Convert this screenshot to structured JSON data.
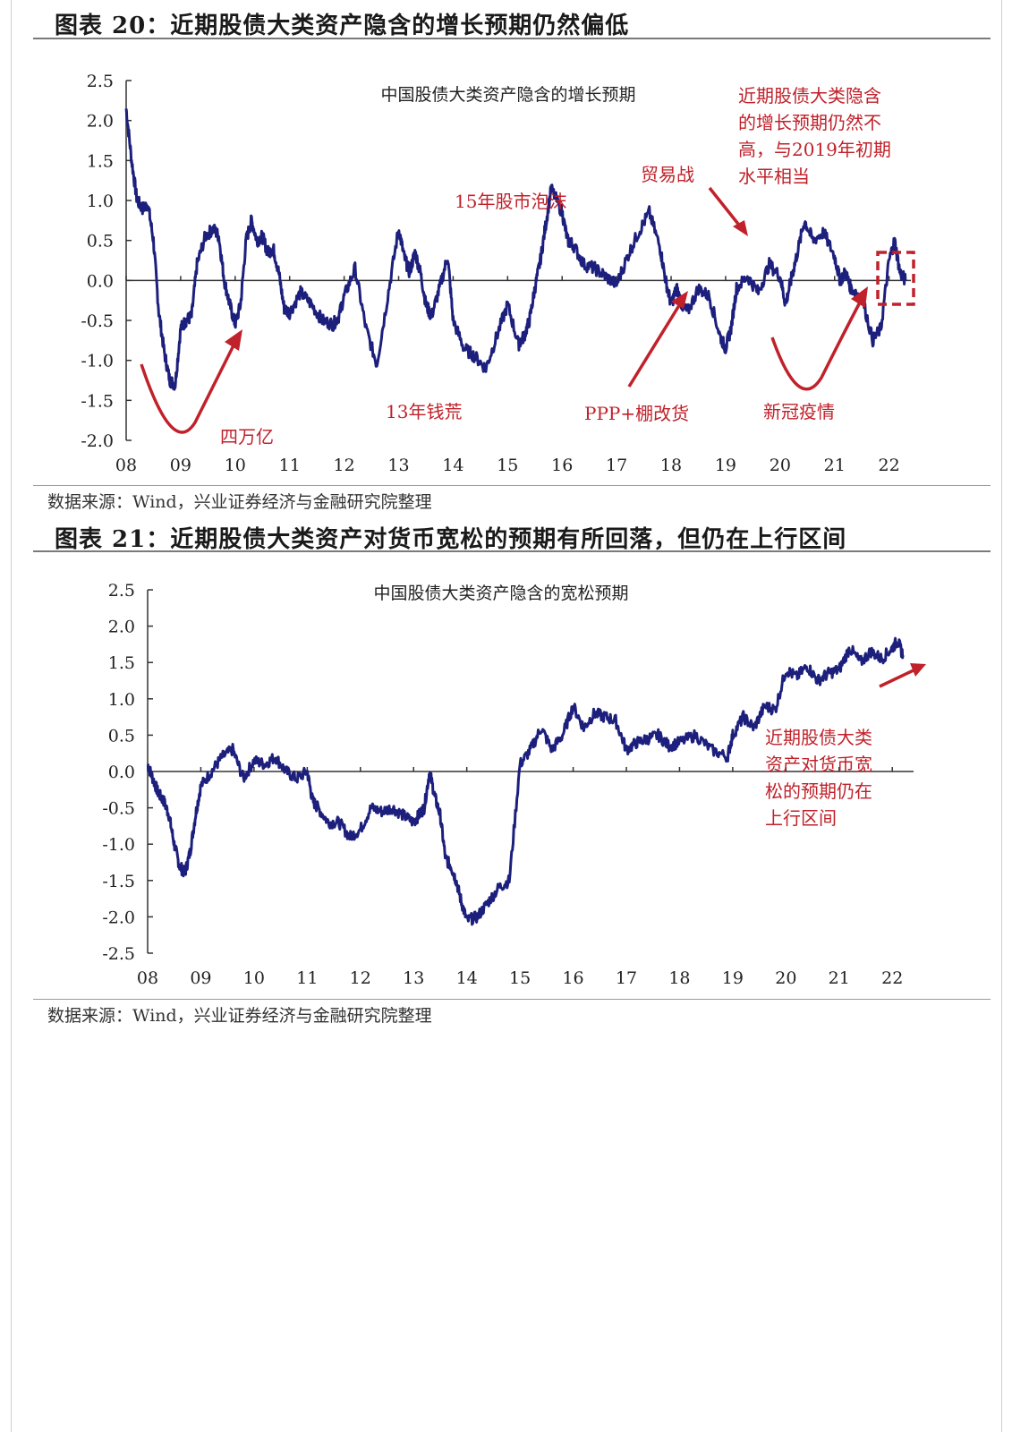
{
  "figures": [
    {
      "heading": "图表 20：近期股债大类资产隐含的增长预期仍然偏低",
      "source": "数据来源：Wind，兴业证券经济与金融研究院整理",
      "chart_data": {
        "type": "line",
        "title": "中国股债大类资产隐含的增长预期",
        "xlabel": "",
        "ylabel": "",
        "ylim": [
          -2.0,
          2.5
        ],
        "ytick_labels": [
          "2.5",
          "2.0",
          "1.5",
          "1.0",
          "0.5",
          "0.0",
          "-0.5",
          "-1.0",
          "-1.5",
          "-2.0"
        ],
        "xtick_labels": [
          "08",
          "09",
          "10",
          "11",
          "12",
          "13",
          "14",
          "15",
          "16",
          "17",
          "18",
          "19",
          "20",
          "21",
          "22"
        ],
        "x_range": [
          2008,
          2022.4
        ],
        "series": [
          {
            "name": "",
            "color": "#1c1f7c",
            "x": [
              2008.0,
              2008.1,
              2008.2,
              2008.3,
              2008.4,
              2008.5,
              2008.6,
              2008.7,
              2008.8,
              2008.9,
              2009.0,
              2009.1,
              2009.2,
              2009.3,
              2009.45,
              2009.6,
              2009.7,
              2009.8,
              2009.9,
              2010.0,
              2010.1,
              2010.2,
              2010.3,
              2010.4,
              2010.5,
              2010.6,
              2010.7,
              2010.8,
              2010.9,
              2011.0,
              2011.2,
              2011.4,
              2011.6,
              2011.8,
              2011.9,
              2012.0,
              2012.2,
              2012.4,
              2012.6,
              2012.8,
              2013.0,
              2013.1,
              2013.2,
              2013.3,
              2013.4,
              2013.5,
              2013.6,
              2013.75,
              2013.9,
              2014.0,
              2014.2,
              2014.4,
              2014.6,
              2014.8,
              2015.0,
              2015.2,
              2015.3,
              2015.4,
              2015.5,
              2015.6,
              2015.7,
              2015.8,
              2016.0,
              2016.1,
              2016.2,
              2016.4,
              2016.6,
              2016.8,
              2017.0,
              2017.2,
              2017.4,
              2017.6,
              2017.8,
              2017.9,
              2018.0,
              2018.1,
              2018.2,
              2018.3,
              2018.5,
              2018.7,
              2018.9,
              2019.0,
              2019.1,
              2019.2,
              2019.4,
              2019.6,
              2019.8,
              2020.0,
              2020.1,
              2020.2,
              2020.3,
              2020.45,
              2020.6,
              2020.8,
              2021.0,
              2021.1,
              2021.2,
              2021.3,
              2021.5,
              2021.7,
              2021.85,
              2022.0,
              2022.1,
              2022.2,
              2022.3
            ],
            "y": [
              2.15,
              1.5,
              1.0,
              0.9,
              0.95,
              0.5,
              -0.4,
              -0.9,
              -1.25,
              -1.3,
              -0.6,
              -0.5,
              -0.45,
              0.2,
              0.55,
              0.65,
              0.55,
              0.0,
              -0.3,
              -0.55,
              -0.3,
              0.5,
              0.75,
              0.5,
              0.55,
              0.35,
              0.4,
              0.1,
              -0.35,
              -0.4,
              -0.15,
              -0.3,
              -0.5,
              -0.55,
              -0.45,
              -0.2,
              0.15,
              -0.6,
              -1.05,
              -0.2,
              0.65,
              0.3,
              0.1,
              0.35,
              0.1,
              -0.3,
              -0.45,
              -0.1,
              0.3,
              -0.5,
              -0.85,
              -0.95,
              -1.1,
              -0.7,
              -0.3,
              -0.8,
              -0.7,
              -0.5,
              -0.1,
              0.25,
              0.7,
              1.15,
              0.85,
              0.5,
              0.45,
              0.2,
              0.15,
              0.05,
              -0.05,
              0.3,
              0.6,
              0.85,
              0.4,
              0.0,
              -0.3,
              -0.1,
              -0.3,
              -0.4,
              -0.1,
              -0.2,
              -0.7,
              -0.85,
              -0.6,
              -0.1,
              0.05,
              -0.15,
              0.2,
              0.05,
              -0.3,
              0.0,
              0.3,
              0.75,
              0.5,
              0.6,
              0.3,
              0.0,
              0.1,
              -0.1,
              -0.2,
              -0.75,
              -0.6,
              0.25,
              0.5,
              0.1,
              0.0
            ],
            "y_scale_note": ""
          }
        ],
        "annotations": [
          {
            "text": "15年股市泡沫"
          },
          {
            "text": "贸易战"
          },
          {
            "text": "四万亿"
          },
          {
            "text": "13年钱荒"
          },
          {
            "text": "PPP+棚改货"
          },
          {
            "text": "新冠疫情"
          },
          {
            "lines": [
              "近期股债大类隐含",
              "的增长预期仍然不",
              "高，与2019年初期",
              "水平相当"
            ]
          }
        ]
      }
    },
    {
      "heading": "图表 21：近期股债大类资产对货币宽松的预期有所回落，但仍在上行区间",
      "source": "数据来源：Wind，兴业证券经济与金融研究院整理",
      "chart_data": {
        "type": "line",
        "title": "中国股债大类资产隐含的宽松预期",
        "xlabel": "",
        "ylabel": "",
        "ylim": [
          -2.5,
          2.5
        ],
        "ytick_labels": [
          "2.5",
          "2.0",
          "1.5",
          "1.0",
          "0.5",
          "0.0",
          "-0.5",
          "-1.0",
          "-1.5",
          "-2.0",
          "-2.5"
        ],
        "xtick_labels": [
          "08",
          "09",
          "10",
          "11",
          "12",
          "13",
          "14",
          "15",
          "16",
          "17",
          "18",
          "19",
          "20",
          "21",
          "22"
        ],
        "x_range": [
          2008,
          2022.4
        ],
        "series": [
          {
            "name": "",
            "color": "#1c1f7c",
            "x": [
              2008.0,
              2008.1,
              2008.2,
              2008.3,
              2008.4,
              2008.5,
              2008.6,
              2008.7,
              2008.8,
              2008.9,
              2009.0,
              2009.2,
              2009.4,
              2009.6,
              2009.8,
              2010.0,
              2010.2,
              2010.4,
              2010.6,
              2010.8,
              2011.0,
              2011.1,
              2011.2,
              2011.4,
              2011.6,
              2011.8,
              2012.0,
              2012.2,
              2012.4,
              2012.6,
              2012.8,
              2013.0,
              2013.1,
              2013.2,
              2013.3,
              2013.4,
              2013.5,
              2013.6,
              2013.7,
              2013.8,
              2013.9,
              2014.0,
              2014.2,
              2014.4,
              2014.6,
              2014.8,
              2015.0,
              2015.2,
              2015.4,
              2015.6,
              2015.8,
              2016.0,
              2016.2,
              2016.4,
              2016.6,
              2016.8,
              2017.0,
              2017.2,
              2017.4,
              2017.6,
              2017.8,
              2018.0,
              2018.3,
              2018.6,
              2018.9,
              2019.0,
              2019.2,
              2019.4,
              2019.6,
              2019.8,
              2020.0,
              2020.2,
              2020.4,
              2020.6,
              2020.8,
              2021.0,
              2021.2,
              2021.4,
              2021.6,
              2021.8,
              2022.0,
              2022.1,
              2022.2
            ],
            "y": [
              0.1,
              -0.1,
              -0.3,
              -0.4,
              -0.6,
              -1.0,
              -1.3,
              -1.4,
              -1.1,
              -0.6,
              -0.2,
              0.0,
              0.2,
              0.3,
              -0.1,
              0.15,
              0.1,
              0.2,
              0.0,
              -0.1,
              0.0,
              -0.4,
              -0.5,
              -0.7,
              -0.7,
              -0.9,
              -0.8,
              -0.5,
              -0.55,
              -0.5,
              -0.6,
              -0.7,
              -0.6,
              -0.5,
              0.0,
              -0.35,
              -0.6,
              -1.2,
              -1.3,
              -1.5,
              -1.8,
              -2.05,
              -2.0,
              -1.8,
              -1.6,
              -1.5,
              0.1,
              0.3,
              0.6,
              0.3,
              0.5,
              0.9,
              0.6,
              0.8,
              0.75,
              0.7,
              0.3,
              0.4,
              0.45,
              0.5,
              0.35,
              0.4,
              0.5,
              0.3,
              0.2,
              0.5,
              0.75,
              0.6,
              0.9,
              0.85,
              1.4,
              1.3,
              1.45,
              1.25,
              1.35,
              1.4,
              1.7,
              1.5,
              1.65,
              1.55,
              1.7,
              1.8,
              1.6
            ]
          }
        ],
        "annotations": [
          {
            "lines": [
              "近期股债大类",
              "资产对货币宽",
              "松的预期仍在",
              "上行区间"
            ]
          }
        ]
      }
    }
  ]
}
